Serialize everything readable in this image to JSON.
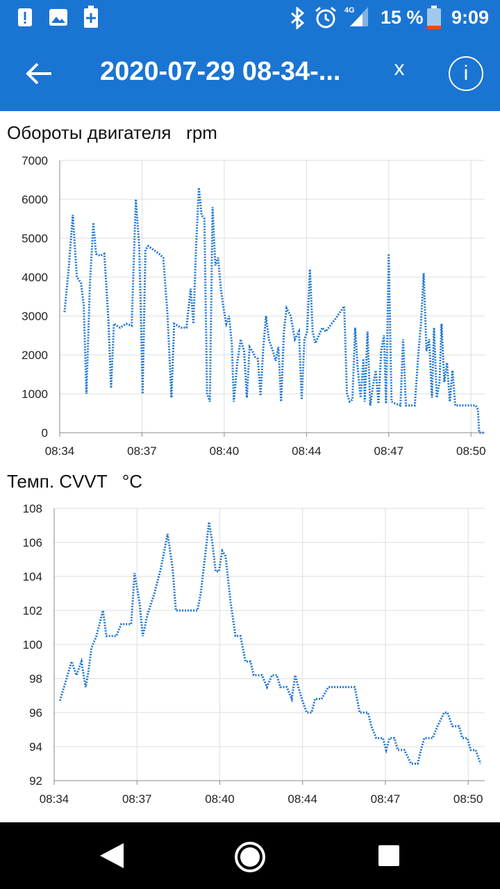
{
  "status_bar": {
    "time": "9:09",
    "battery": "15 %",
    "network": "4G",
    "left_icons": [
      "alert-icon",
      "image-icon",
      "battery-plus-icon"
    ],
    "right_icons": [
      "bluetooth-icon",
      "alarm-icon",
      "signal-icon",
      "battery-icon"
    ]
  },
  "app_bar": {
    "title": "2020-07-29 08-34-...",
    "close_label": "x",
    "info_label": "i",
    "color": "#1a75d2"
  },
  "chart_data": [
    {
      "type": "line",
      "title": "Обороты двигателя   rpm",
      "ylim": [
        0,
        7000
      ],
      "yticks": [
        "0",
        "1000",
        "2000",
        "3000",
        "4000",
        "5000",
        "6000",
        "7000"
      ],
      "xticks": [
        "08:34",
        "08:37",
        "08:40",
        "08:44",
        "08:47",
        "08:50"
      ],
      "grid": true,
      "line_color": "#1a75d2",
      "series": [
        {
          "values": [
            [
              8.2,
              3100
            ],
            [
              8.8,
              4200
            ],
            [
              9.4,
              5600
            ],
            [
              10.0,
              4000
            ],
            [
              10.6,
              3850
            ],
            [
              11.0,
              3300
            ],
            [
              11.4,
              1000
            ],
            [
              11.9,
              3800
            ],
            [
              12.4,
              5400
            ],
            [
              12.8,
              4600
            ],
            [
              13.4,
              4550
            ],
            [
              14.0,
              4600
            ],
            [
              14.6,
              2900
            ],
            [
              15.0,
              1150
            ],
            [
              15.4,
              2800
            ],
            [
              16.3,
              2700
            ],
            [
              17.2,
              2800
            ],
            [
              18.0,
              2750
            ],
            [
              18.6,
              6000
            ],
            [
              19.1,
              4800
            ],
            [
              19.6,
              1000
            ],
            [
              20.0,
              4700
            ],
            [
              20.4,
              4800
            ],
            [
              22.0,
              4600
            ],
            [
              22.6,
              4500
            ],
            [
              23.2,
              3100
            ],
            [
              23.8,
              900
            ],
            [
              24.2,
              2800
            ],
            [
              25.2,
              2700
            ],
            [
              26.0,
              2700
            ],
            [
              26.6,
              3700
            ],
            [
              27.0,
              2800
            ],
            [
              27.4,
              4800
            ],
            [
              27.8,
              6300
            ],
            [
              28.2,
              5600
            ],
            [
              28.6,
              5500
            ],
            [
              29.0,
              1000
            ],
            [
              29.4,
              800
            ],
            [
              29.8,
              5800
            ],
            [
              30.2,
              4300
            ],
            [
              30.6,
              4500
            ],
            [
              31.0,
              3700
            ],
            [
              31.4,
              3200
            ],
            [
              31.8,
              2800
            ],
            [
              32.2,
              3000
            ],
            [
              32.6,
              2300
            ],
            [
              32.9,
              800
            ],
            [
              33.4,
              1800
            ],
            [
              33.9,
              2400
            ],
            [
              34.4,
              2100
            ],
            [
              34.8,
              900
            ],
            [
              35.2,
              2200
            ],
            [
              35.6,
              2100
            ],
            [
              36.0,
              1950
            ],
            [
              36.4,
              1900
            ],
            [
              36.8,
              950
            ],
            [
              37.2,
              2200
            ],
            [
              37.6,
              3000
            ],
            [
              38.0,
              2400
            ],
            [
              38.6,
              2100
            ],
            [
              39.0,
              1850
            ],
            [
              39.4,
              2200
            ],
            [
              39.8,
              800
            ],
            [
              40.2,
              2600
            ],
            [
              40.6,
              3200
            ],
            [
              41.2,
              3000
            ],
            [
              41.8,
              2400
            ],
            [
              42.4,
              2600
            ],
            [
              42.8,
              850
            ],
            [
              43.2,
              2400
            ],
            [
              43.6,
              2600
            ],
            [
              44.0,
              4200
            ],
            [
              44.4,
              2600
            ],
            [
              44.8,
              2300
            ],
            [
              45.3,
              2500
            ],
            [
              45.8,
              2700
            ],
            [
              46.3,
              2600
            ],
            [
              47.6,
              2900
            ],
            [
              49.0,
              3250
            ],
            [
              49.4,
              1000
            ],
            [
              49.8,
              800
            ],
            [
              50.2,
              850
            ],
            [
              50.6,
              2700
            ],
            [
              51.0,
              1600
            ],
            [
              51.4,
              900
            ],
            [
              51.8,
              1900
            ],
            [
              52.0,
              800
            ],
            [
              52.4,
              2600
            ],
            [
              52.8,
              700
            ],
            [
              53.2,
              1200
            ],
            [
              53.6,
              1600
            ],
            [
              54.0,
              750
            ],
            [
              54.4,
              2100
            ],
            [
              54.8,
              2500
            ],
            [
              55.1,
              750
            ],
            [
              55.5,
              4600
            ],
            [
              55.9,
              800
            ],
            [
              56.4,
              750
            ],
            [
              57.2,
              700
            ],
            [
              57.6,
              2400
            ],
            [
              58.0,
              700
            ],
            [
              58.6,
              700
            ],
            [
              59.3,
              700
            ],
            [
              59.8,
              2000
            ],
            [
              60.2,
              2800
            ],
            [
              60.6,
              4100
            ],
            [
              61.0,
              2100
            ],
            [
              61.4,
              2400
            ],
            [
              61.8,
              900
            ],
            [
              62.1,
              2700
            ],
            [
              62.5,
              900
            ],
            [
              62.9,
              1300
            ],
            [
              63.2,
              2800
            ],
            [
              63.6,
              1300
            ],
            [
              64.0,
              1800
            ],
            [
              64.4,
              800
            ],
            [
              64.8,
              1600
            ],
            [
              65.2,
              700
            ],
            [
              66.5,
              700
            ],
            [
              67.8,
              700
            ],
            [
              68.2,
              700
            ],
            [
              68.5,
              600
            ],
            [
              68.7,
              0
            ],
            [
              69.4,
              0
            ]
          ]
        }
      ]
    },
    {
      "type": "line",
      "title": "Темп. CVVT   °C",
      "ylim": [
        92,
        108
      ],
      "yticks": [
        "92",
        "94",
        "96",
        "98",
        "100",
        "102",
        "104",
        "106",
        "108"
      ],
      "xticks": [
        "08:34",
        "08:37",
        "08:40",
        "08:44",
        "08:47",
        "08:50"
      ],
      "grid": true,
      "line_color": "#1a75d2",
      "series": [
        {
          "values": [
            [
              7.2,
              96.7
            ],
            [
              8.0,
              98.0
            ],
            [
              8.6,
              99.0
            ],
            [
              9.2,
              98.2
            ],
            [
              9.8,
              99.0
            ],
            [
              10.3,
              97.5
            ],
            [
              10.6,
              98.3
            ],
            [
              11.0,
              99.8
            ],
            [
              11.6,
              100.5
            ],
            [
              12.4,
              102.0
            ],
            [
              12.8,
              100.5
            ],
            [
              14.0,
              100.5
            ],
            [
              14.6,
              101.2
            ],
            [
              15.8,
              101.2
            ],
            [
              16.2,
              104.2
            ],
            [
              16.8,
              102.5
            ],
            [
              17.2,
              100.5
            ],
            [
              17.8,
              101.8
            ],
            [
              18.6,
              103.0
            ],
            [
              19.4,
              104.5
            ],
            [
              20.2,
              106.5
            ],
            [
              20.8,
              104.5
            ],
            [
              21.2,
              102.0
            ],
            [
              22.0,
              102.0
            ],
            [
              23.2,
              102.0
            ],
            [
              23.8,
              102.0
            ],
            [
              24.2,
              103.0
            ],
            [
              24.8,
              105.5
            ],
            [
              25.2,
              107.2
            ],
            [
              25.6,
              106.0
            ],
            [
              26.0,
              104.3
            ],
            [
              26.4,
              104.3
            ],
            [
              26.8,
              105.5
            ],
            [
              27.2,
              105.2
            ],
            [
              27.8,
              102.5
            ],
            [
              28.4,
              100.5
            ],
            [
              29.0,
              100.5
            ],
            [
              29.6,
              99.0
            ],
            [
              30.2,
              99.0
            ],
            [
              30.6,
              98.2
            ],
            [
              31.6,
              98.2
            ],
            [
              32.2,
              97.5
            ],
            [
              32.8,
              98.2
            ],
            [
              33.4,
              98.2
            ],
            [
              33.8,
              97.5
            ],
            [
              34.6,
              97.5
            ],
            [
              35.2,
              96.8
            ],
            [
              35.6,
              98.2
            ],
            [
              36.0,
              97.5
            ],
            [
              36.4,
              96.8
            ],
            [
              37.0,
              96.0
            ],
            [
              37.6,
              96.0
            ],
            [
              38.0,
              96.8
            ],
            [
              38.8,
              96.8
            ],
            [
              39.6,
              97.5
            ],
            [
              40.6,
              97.5
            ],
            [
              41.6,
              97.5
            ],
            [
              42.8,
              97.5
            ],
            [
              43.4,
              96.0
            ],
            [
              44.4,
              96.0
            ],
            [
              44.8,
              95.2
            ],
            [
              45.4,
              94.5
            ],
            [
              46.2,
              94.5
            ],
            [
              46.6,
              93.8
            ],
            [
              47.0,
              94.5
            ],
            [
              47.6,
              94.5
            ],
            [
              48.0,
              93.8
            ],
            [
              48.8,
              93.8
            ],
            [
              49.6,
              93.0
            ],
            [
              50.4,
              93.0
            ],
            [
              50.8,
              93.8
            ],
            [
              51.2,
              94.5
            ],
            [
              51.8,
              94.5
            ],
            [
              52.2,
              94.5
            ],
            [
              52.8,
              95.2
            ],
            [
              53.6,
              96.0
            ],
            [
              54.0,
              96.0
            ],
            [
              54.6,
              95.2
            ],
            [
              55.4,
              95.2
            ],
            [
              55.8,
              94.5
            ],
            [
              56.4,
              94.5
            ],
            [
              56.8,
              93.8
            ],
            [
              57.4,
              93.8
            ],
            [
              58.0,
              93.0
            ]
          ]
        }
      ]
    }
  ]
}
